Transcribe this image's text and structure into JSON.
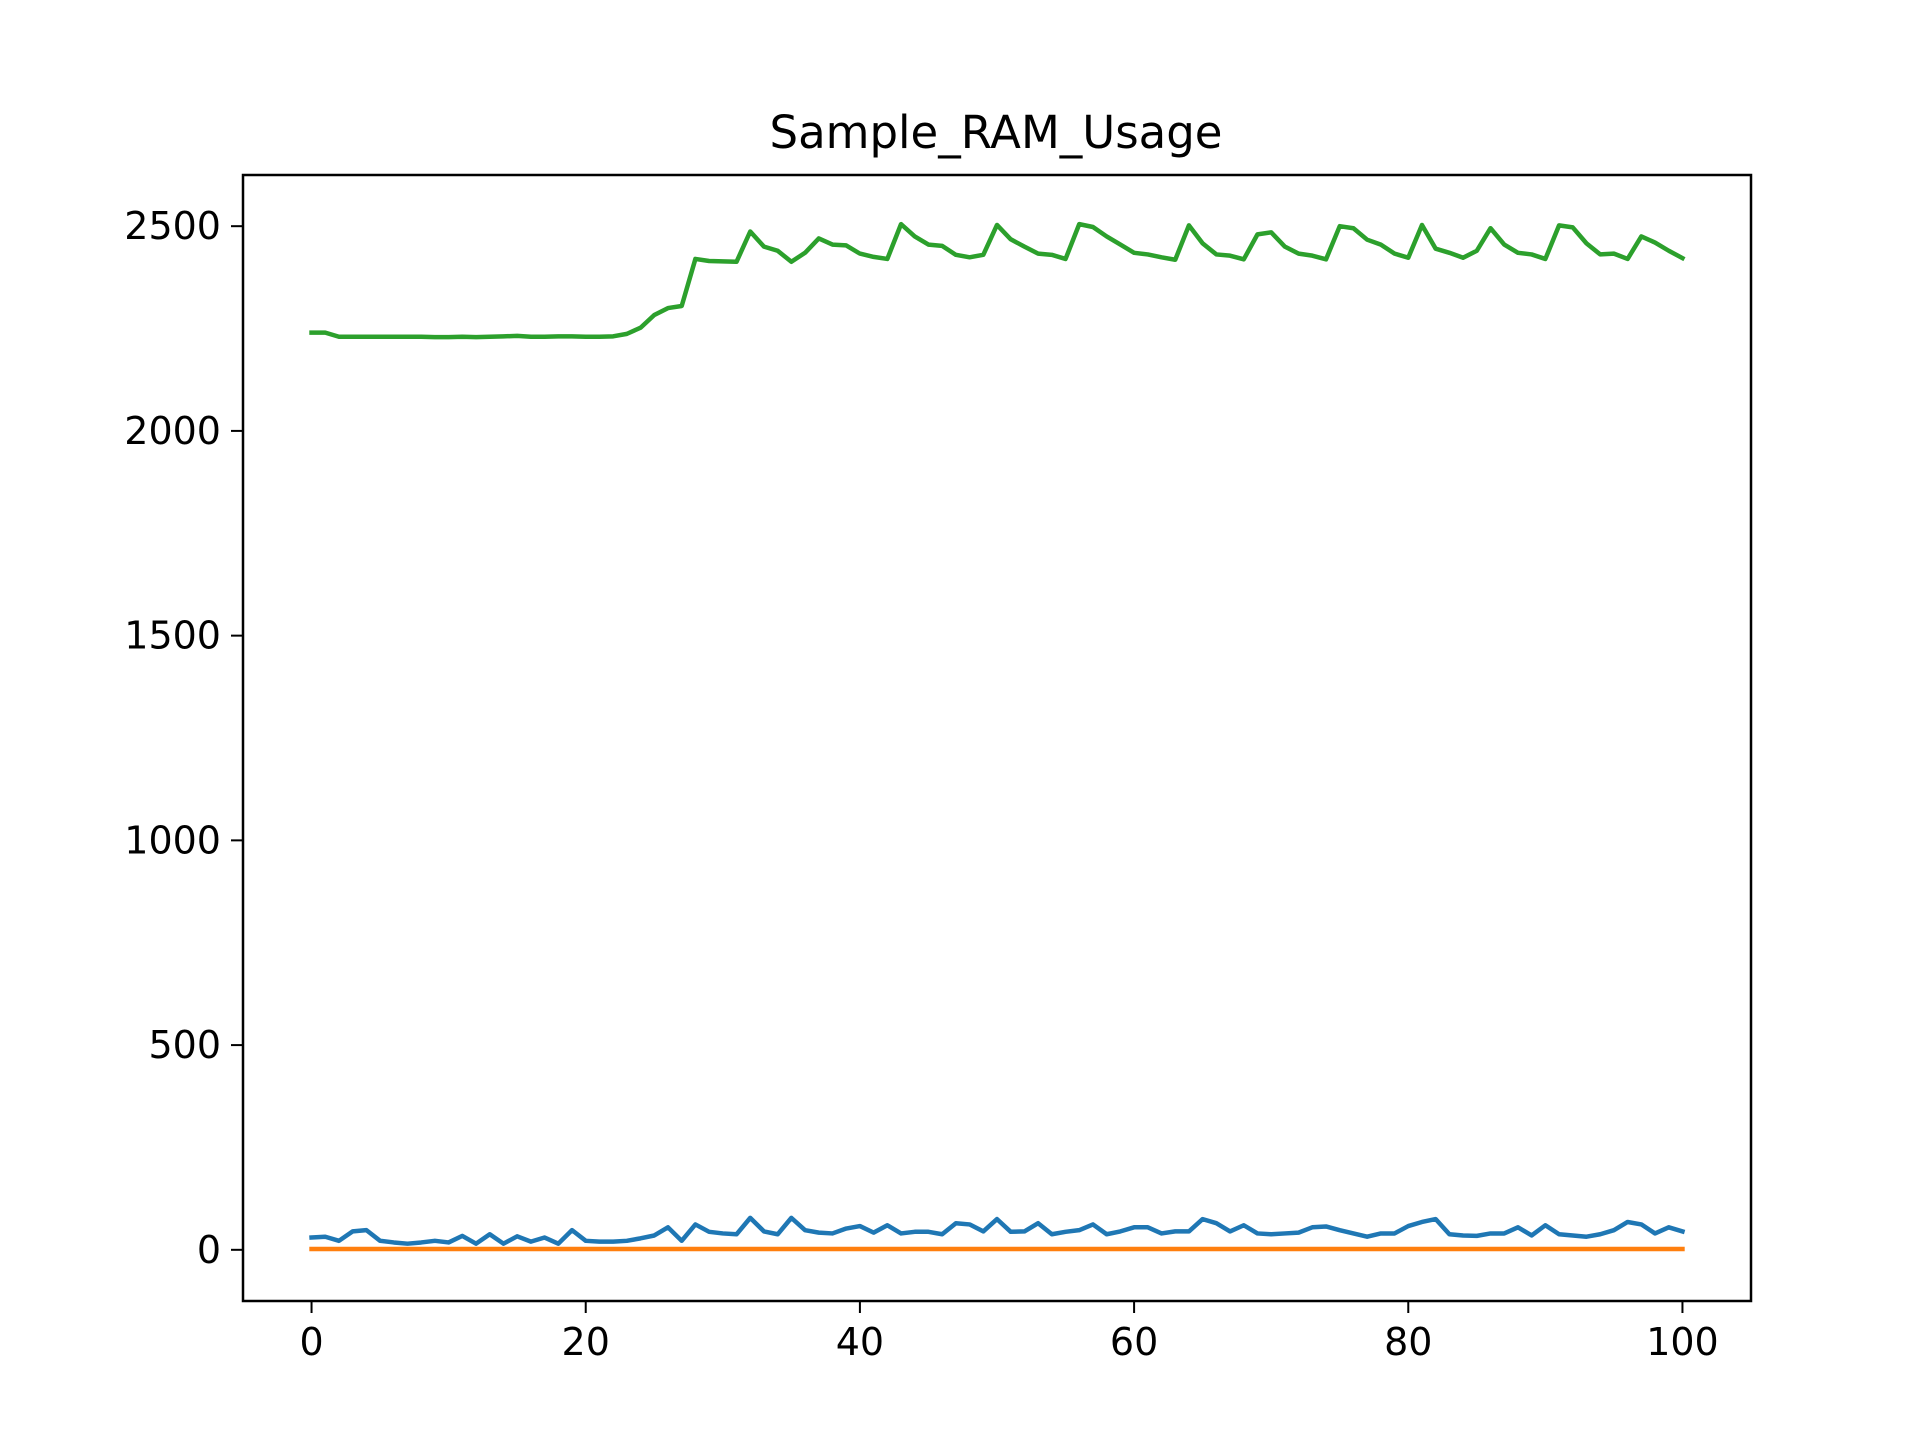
{
  "chart_data": {
    "type": "line",
    "title": "Sample_RAM_Usage",
    "xlabel": "",
    "ylabel": "",
    "xlim": [
      -5,
      105
    ],
    "ylim": [
      -125,
      2625
    ],
    "x_ticks": [
      0,
      20,
      40,
      60,
      80,
      100
    ],
    "y_ticks": [
      0,
      500,
      1000,
      1500,
      2000,
      2500
    ],
    "grid": false,
    "legend": "none",
    "x": [
      0,
      1,
      2,
      3,
      4,
      5,
      6,
      7,
      8,
      9,
      10,
      11,
      12,
      13,
      14,
      15,
      16,
      17,
      18,
      19,
      20,
      21,
      22,
      23,
      24,
      25,
      26,
      27,
      28,
      29,
      30,
      31,
      32,
      33,
      34,
      35,
      36,
      37,
      38,
      39,
      40,
      41,
      42,
      43,
      44,
      45,
      46,
      47,
      48,
      49,
      50,
      51,
      52,
      53,
      54,
      55,
      56,
      57,
      58,
      59,
      60,
      61,
      62,
      63,
      64,
      65,
      66,
      67,
      68,
      69,
      70,
      71,
      72,
      73,
      74,
      75,
      76,
      77,
      78,
      79,
      80,
      81,
      82,
      83,
      84,
      85,
      86,
      87,
      88,
      89,
      90,
      91,
      92,
      93,
      94,
      95,
      96,
      97,
      98,
      99,
      100
    ],
    "series": [
      {
        "color": "#1f77b4",
        "values": [
          30,
          32,
          22,
          45,
          48,
          22,
          18,
          15,
          18,
          22,
          18,
          34,
          15,
          38,
          15,
          33,
          20,
          30,
          15,
          48,
          22,
          20,
          20,
          22,
          28,
          35,
          55,
          22,
          62,
          44,
          40,
          38,
          78,
          45,
          38,
          78,
          48,
          42,
          40,
          52,
          58,
          42,
          60,
          40,
          44,
          44,
          38,
          65,
          62,
          45,
          75,
          44,
          45,
          65,
          38,
          44,
          48,
          62,
          38,
          45,
          55,
          55,
          40,
          45,
          45,
          75,
          65,
          45,
          60,
          40,
          38,
          40,
          42,
          55,
          57,
          48,
          40,
          32,
          40,
          40,
          58,
          68,
          75,
          38,
          35,
          34,
          40,
          40,
          55,
          35,
          60,
          38,
          35,
          32,
          38,
          48,
          68,
          62,
          40,
          55,
          45
        ]
      },
      {
        "color": "#ff7f0e",
        "values": [
          2,
          2,
          2,
          2,
          2,
          2,
          2,
          2,
          2,
          2,
          2,
          2,
          2,
          2,
          2,
          2,
          2,
          2,
          2,
          2,
          2,
          2,
          2,
          2,
          2,
          2,
          2,
          2,
          2,
          2,
          2,
          2,
          2,
          2,
          2,
          2,
          2,
          2,
          2,
          2,
          2,
          2,
          2,
          2,
          2,
          2,
          2,
          2,
          2,
          2,
          2,
          2,
          2,
          2,
          2,
          2,
          2,
          2,
          2,
          2,
          2,
          2,
          2,
          2,
          2,
          2,
          2,
          2,
          2,
          2,
          2,
          2,
          2,
          2,
          2,
          2,
          2,
          2,
          2,
          2,
          2,
          2,
          2,
          2,
          2,
          2,
          2,
          2,
          2,
          2,
          2,
          2,
          2,
          2,
          2,
          2,
          2,
          2,
          2,
          2,
          2
        ]
      },
      {
        "color": "#2ca02c",
        "values": [
          2240,
          2240,
          2230,
          2230,
          2230,
          2230,
          2230,
          2230,
          2230,
          2229,
          2229,
          2230,
          2229,
          2230,
          2231,
          2232,
          2230,
          2230,
          2231,
          2231,
          2230,
          2230,
          2231,
          2237,
          2252,
          2283,
          2300,
          2305,
          2420,
          2415,
          2414,
          2413,
          2487,
          2450,
          2440,
          2413,
          2435,
          2470,
          2455,
          2453,
          2433,
          2425,
          2420,
          2505,
          2475,
          2455,
          2452,
          2430,
          2424,
          2430,
          2503,
          2468,
          2450,
          2433,
          2430,
          2420,
          2505,
          2498,
          2475,
          2455,
          2435,
          2431,
          2424,
          2418,
          2502,
          2458,
          2431,
          2428,
          2419,
          2480,
          2485,
          2450,
          2433,
          2428,
          2419,
          2500,
          2495,
          2467,
          2455,
          2433,
          2423,
          2503,
          2445,
          2435,
          2423,
          2440,
          2495,
          2455,
          2435,
          2431,
          2420,
          2502,
          2497,
          2458,
          2431,
          2433,
          2420,
          2475,
          2460,
          2440,
          2422
        ]
      }
    ]
  }
}
